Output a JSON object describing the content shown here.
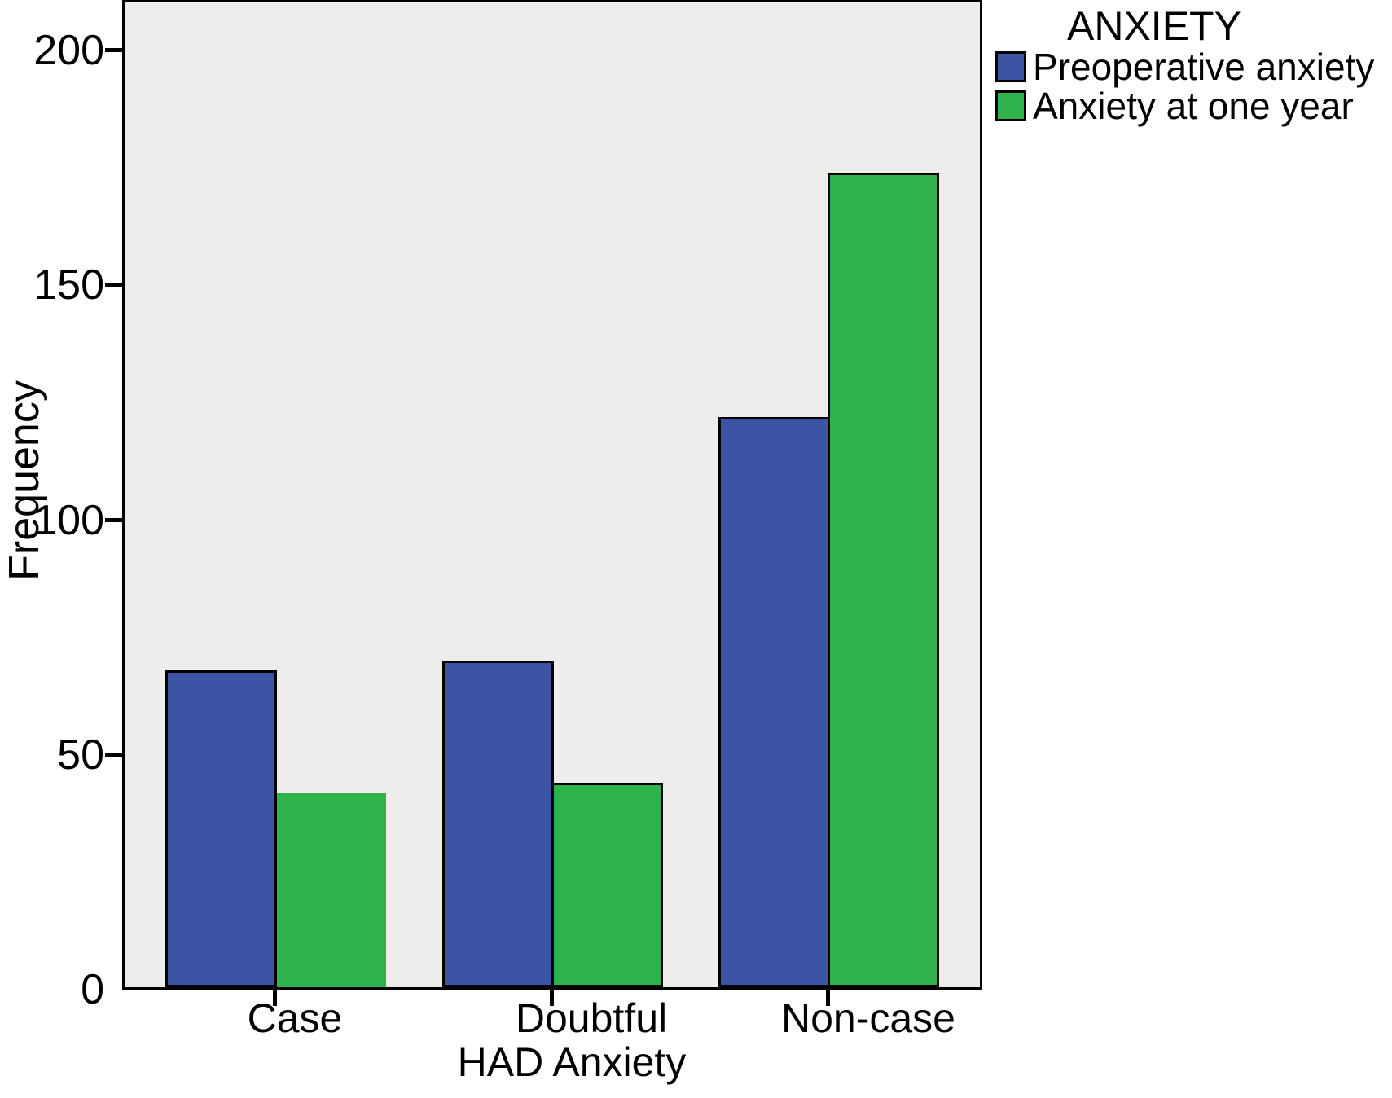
{
  "chart_data": {
    "type": "bar",
    "title": "",
    "categories": [
      "Case",
      "Doubtful",
      "Non-case"
    ],
    "series": [
      {
        "name": "Preoperative anxiety",
        "color": "#3B55A4",
        "values": [
          68,
          70,
          122
        ]
      },
      {
        "name": "Anxiety at one year",
        "color": "#2FB14B",
        "values": [
          42,
          44,
          174
        ]
      }
    ],
    "xlabel": "HAD Anxiety",
    "ylabel": "Frequency",
    "ylim": [
      0,
      200
    ],
    "yticks": [
      0,
      50,
      100,
      150,
      200
    ],
    "ytick_labels": [
      "0",
      "50",
      "100",
      "150",
      "200"
    ],
    "zero_tick_mark": false,
    "legend_title": "ANXIETY",
    "legend_position": "top-right-outside",
    "grid": false,
    "plot_background": "#EDEDEB",
    "axis_color": "#000000",
    "bar_outline_color": "#000000",
    "no_outline_bars": [
      {
        "category": "Case",
        "series": "Anxiety at one year"
      }
    ]
  }
}
